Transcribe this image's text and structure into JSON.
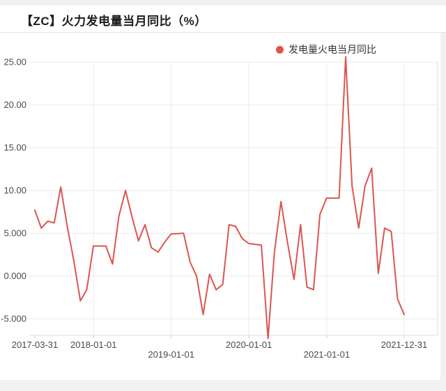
{
  "header": {
    "title": "【ZC】火力发电量当月同比（%）"
  },
  "legend": {
    "label": "发电量火电当月同比",
    "dot_color": "#e0544f"
  },
  "colors": {
    "line": "#dc544f",
    "grid": "#ebebeb",
    "axis": "#dcdcdc",
    "tick_text": "#4a4a4a",
    "page_bg": "#f1f1f2",
    "card_bg": "#ffffff"
  },
  "chart_data": {
    "type": "line",
    "title": "【ZC】火力发电量当月同比（%）",
    "series_name": "发电量火电当月同比",
    "grid_on": true,
    "legend_position": "top-right",
    "ylim": [
      -7.5,
      26
    ],
    "xlabel": "",
    "ylabel": "",
    "y_ticks": [
      {
        "label": "25.00",
        "value": 25
      },
      {
        "label": "20.00",
        "value": 20
      },
      {
        "label": "15.00",
        "value": 15
      },
      {
        "label": "10.00",
        "value": 10
      },
      {
        "label": "5.000",
        "value": 5
      },
      {
        "label": "0.000",
        "value": 0
      },
      {
        "label": "-5.000",
        "value": -5
      }
    ],
    "x_ticks": [
      {
        "label": "2017-03-31",
        "date": "2017-03-31",
        "row": 0,
        "grid": false
      },
      {
        "label": "2018-01-01",
        "date": "2018-01-01",
        "row": 0,
        "grid": true
      },
      {
        "label": "2019-01-01",
        "date": "2019-01-01",
        "row": 1,
        "grid": true
      },
      {
        "label": "2020-01-01",
        "date": "2020-01-01",
        "row": 0,
        "grid": true
      },
      {
        "label": "2021-01-01",
        "date": "2021-01-01",
        "row": 1,
        "grid": true
      },
      {
        "label": "2021-12-31",
        "date": "2021-12-31",
        "row": 0,
        "grid": true
      }
    ],
    "series": [
      {
        "name": "发电量火电当月同比",
        "color": "#dc544f",
        "points": [
          [
            "2017-03-31",
            7.7
          ],
          [
            "2017-04-30",
            5.6
          ],
          [
            "2017-05-31",
            6.4
          ],
          [
            "2017-06-30",
            6.2
          ],
          [
            "2017-07-31",
            10.4
          ],
          [
            "2017-08-31",
            5.7
          ],
          [
            "2017-09-30",
            1.8
          ],
          [
            "2017-10-31",
            -2.9
          ],
          [
            "2017-11-30",
            -1.6
          ],
          [
            "2017-12-31",
            3.5
          ],
          [
            "2018-02-28",
            3.5
          ],
          [
            "2018-03-31",
            1.4
          ],
          [
            "2018-04-30",
            7.0
          ],
          [
            "2018-05-31",
            10.0
          ],
          [
            "2018-06-30",
            7.0
          ],
          [
            "2018-07-31",
            4.1
          ],
          [
            "2018-08-31",
            6.0
          ],
          [
            "2018-09-30",
            3.3
          ],
          [
            "2018-10-31",
            2.8
          ],
          [
            "2018-11-30",
            3.9
          ],
          [
            "2018-12-31",
            4.9
          ],
          [
            "2019-02-28",
            5.0
          ],
          [
            "2019-03-31",
            1.6
          ],
          [
            "2019-04-30",
            0.0
          ],
          [
            "2019-05-31",
            -4.5
          ],
          [
            "2019-06-30",
            0.2
          ],
          [
            "2019-07-31",
            -1.6
          ],
          [
            "2019-08-31",
            -1.0
          ],
          [
            "2019-09-30",
            6.0
          ],
          [
            "2019-10-31",
            5.8
          ],
          [
            "2019-11-30",
            4.4
          ],
          [
            "2019-12-31",
            3.8
          ],
          [
            "2020-02-29",
            3.6
          ],
          [
            "2020-03-31",
            -7.3
          ],
          [
            "2020-04-30",
            2.8
          ],
          [
            "2020-05-31",
            8.7
          ],
          [
            "2020-06-30",
            4.0
          ],
          [
            "2020-07-31",
            -0.4
          ],
          [
            "2020-08-31",
            6.0
          ],
          [
            "2020-09-30",
            -1.3
          ],
          [
            "2020-10-31",
            -1.6
          ],
          [
            "2020-11-30",
            7.2
          ],
          [
            "2020-12-31",
            9.1
          ],
          [
            "2021-02-28",
            9.1
          ],
          [
            "2021-03-31",
            25.6
          ],
          [
            "2021-04-30",
            10.5
          ],
          [
            "2021-05-31",
            5.6
          ],
          [
            "2021-06-30",
            10.5
          ],
          [
            "2021-07-31",
            12.6
          ],
          [
            "2021-08-31",
            0.3
          ],
          [
            "2021-09-30",
            5.6
          ],
          [
            "2021-10-31",
            5.2
          ],
          [
            "2021-11-30",
            -2.7
          ],
          [
            "2021-12-31",
            -4.5
          ]
        ]
      }
    ]
  }
}
